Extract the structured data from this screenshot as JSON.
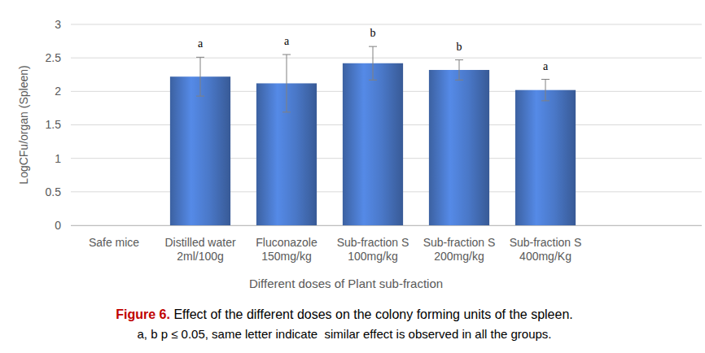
{
  "chart_data": {
    "type": "bar",
    "categories": [
      "Safe mice",
      "Distilled water\n2ml/100g",
      "Fluconazole\n150mg/kg",
      "Sub-fraction S\n100mg/kg",
      "Sub-fraction S\n200mg/kg",
      "Sub-fraction S\n400mg/Kg"
    ],
    "values": [
      null,
      2.22,
      2.12,
      2.42,
      2.32,
      2.02
    ],
    "errors": [
      null,
      0.29,
      0.43,
      0.25,
      0.15,
      0.16
    ],
    "annotations": [
      null,
      "a",
      "a",
      "b",
      "b",
      "a"
    ],
    "color": "#4a78c8",
    "y_label": "LogCFu/organ (Spleen)",
    "x_label": "Different doses of Plant sub-fraction",
    "caption_label": "Figure 6.",
    "caption": "Effect of the different doses on the colony forming units of the spleen.",
    "note": "a, b p ≤ 0.05, same letter indicate  similar effect is observed in all the groups.",
    "ylim": [
      0,
      3
    ],
    "yticks": [
      0,
      0.5,
      1,
      1.5,
      2,
      2.5,
      3
    ],
    "grid": true
  }
}
